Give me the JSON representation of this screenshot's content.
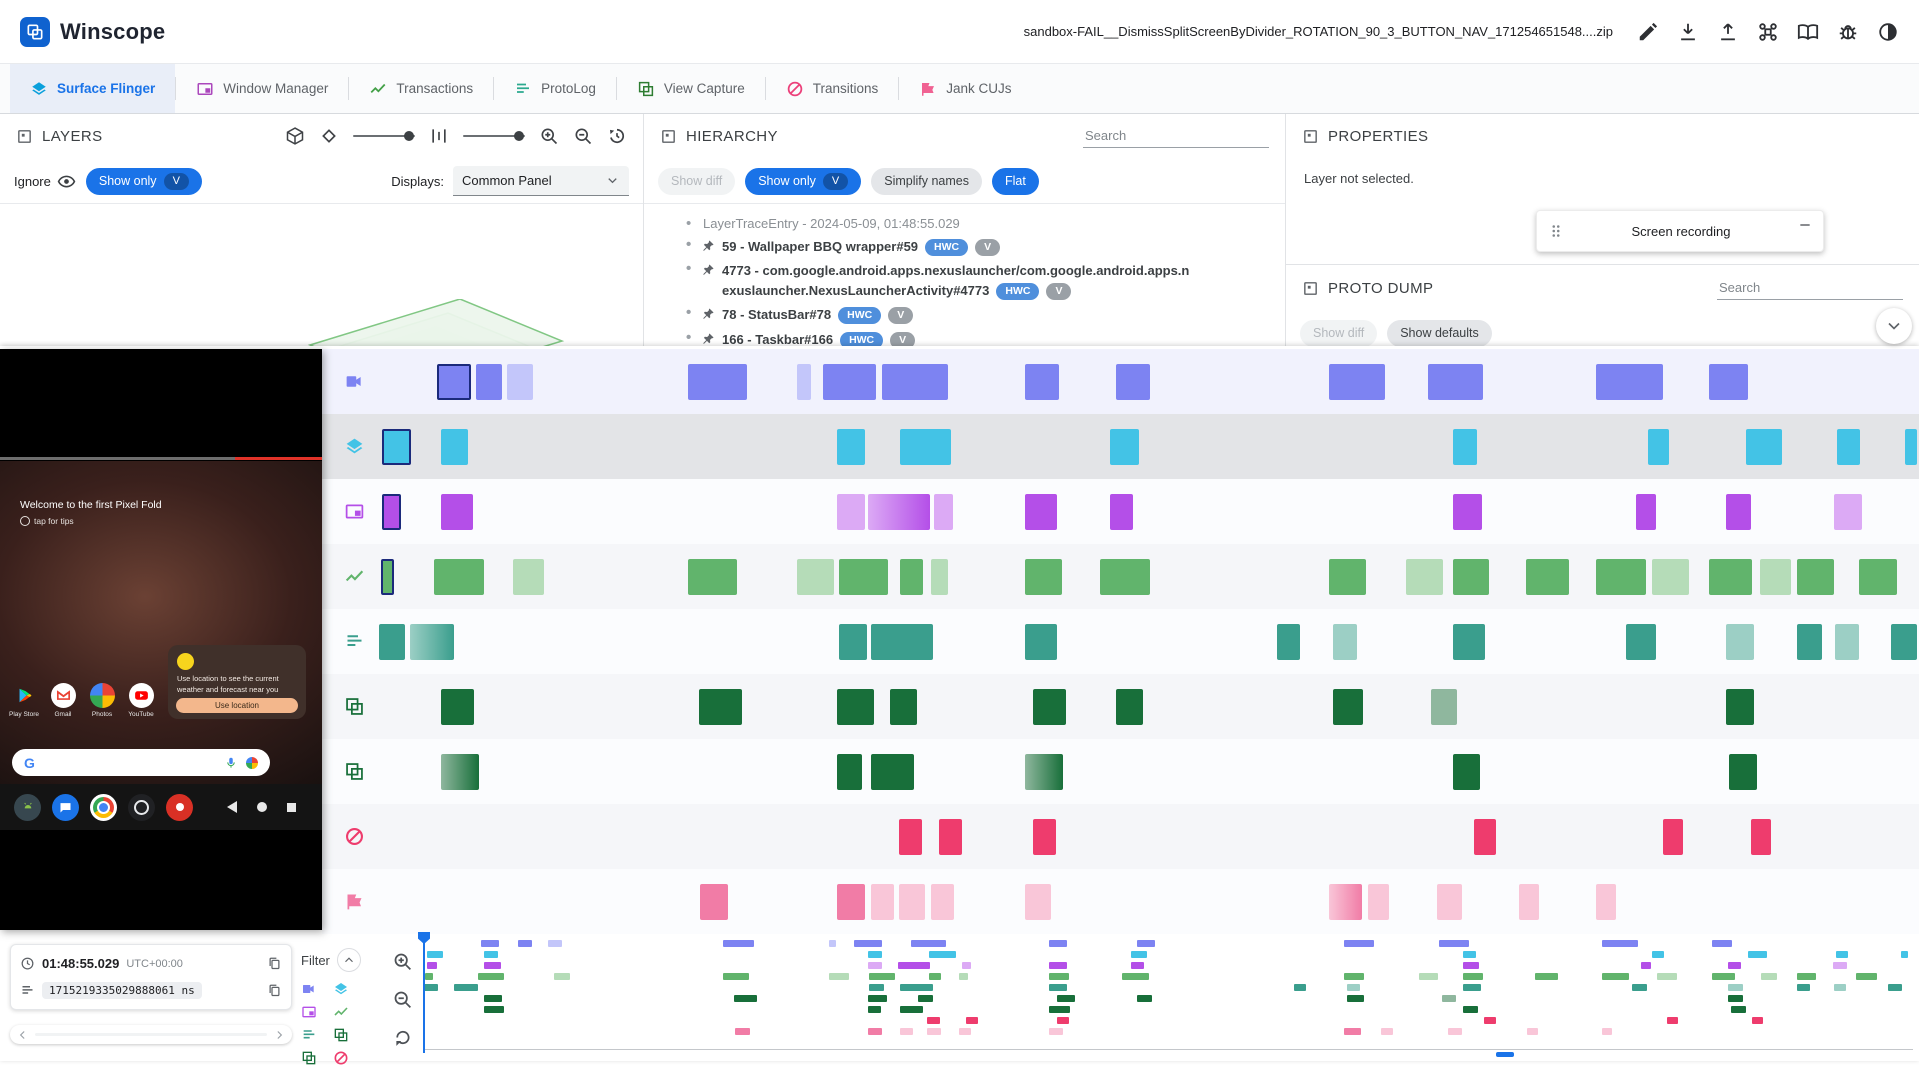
{
  "header": {
    "app_name_bold": "Win",
    "app_name_rest": "scope",
    "filename": "sandbox-FAIL__DismissSplitScreenByDivider_ROTATION_90_3_BUTTON_NAV_171254651548....zip",
    "accent_color": "#1a73e8"
  },
  "tabs": [
    {
      "label": "Surface Flinger",
      "icon": "layers",
      "color": "#0aa0dc",
      "active": true
    },
    {
      "label": "Window Manager",
      "icon": "window",
      "color": "#ab47bc",
      "active": false
    },
    {
      "label": "Transactions",
      "icon": "chart",
      "color": "#43a047",
      "active": false
    },
    {
      "label": "ProtoLog",
      "icon": "listlines",
      "color": "#2ba98e",
      "active": false
    },
    {
      "label": "View Capture",
      "icon": "squares",
      "color": "#2e7d32",
      "active": false
    },
    {
      "label": "Transitions",
      "icon": "blocked",
      "color": "#ec407a",
      "active": false
    },
    {
      "label": "Jank CUJs",
      "icon": "jank",
      "color": "#f06292",
      "active": false
    }
  ],
  "layers_panel": {
    "title": "LAYERS",
    "ignore": "Ignore",
    "show_only": "Show only",
    "v_chip": "V",
    "displays_label": "Displays:",
    "display_value": "Common Panel"
  },
  "hierarchy_panel": {
    "title": "HIERARCHY",
    "search_placeholder": "Search",
    "show_diff": "Show diff",
    "show_only": "Show only",
    "v_chip": "V",
    "simplify": "Simplify names",
    "flat": "Flat",
    "root": "LayerTraceEntry - 2024-05-09, 01:48:55.029",
    "items": [
      {
        "text": "59 - Wallpaper BBQ wrapper#59",
        "chips": [
          "HWC",
          "V"
        ]
      },
      {
        "text": "4773 - com.google.android.apps.nexuslauncher/com.google.android.apps.nexuslauncher.NexusLauncherActivity#4773",
        "chips": [
          "HWC",
          "V"
        ]
      },
      {
        "text": "78 - StatusBar#78",
        "chips": [
          "HWC",
          "V"
        ]
      },
      {
        "text": "166 - Taskbar#166",
        "chips": [
          "HWC",
          "V"
        ]
      }
    ]
  },
  "properties_panel": {
    "title": "PROPERTIES",
    "empty_message": "Layer not selected.",
    "floating_window_title": "Screen recording"
  },
  "proto_dump": {
    "title": "PROTO DUMP",
    "search_placeholder": "Search",
    "show_diff": "Show diff",
    "show_defaults": "Show defaults"
  },
  "timeline_controls": {
    "time": "01:48:55.029",
    "timezone": "UTC+00:00",
    "ns_value": "1715219335029888061 ns",
    "filter_label": "Filter"
  },
  "phone": {
    "welcome": "Welcome to the first Pixel Fold",
    "tips": "tap for tips",
    "toast_text": "Use location to see the current weather and forecast near you",
    "toast_button": "Use location",
    "app_labels": [
      "Play Store",
      "Gmail",
      "Photos",
      "YouTube"
    ]
  },
  "layers_3d": [
    {
      "fill": "rgba(236,245,236,0.95)",
      "stroke": "#81c784"
    },
    {
      "fill": "rgba(200,230,201,0.95)",
      "stroke": "#66bb6a"
    },
    {
      "fill": "rgba(165,214,167,0.95)",
      "stroke": "#43a047"
    },
    {
      "fill": "rgba(206,147,216,0.95)",
      "stroke": "#8e24aa"
    },
    {
      "fill": "rgba(186,104,200,0.95)",
      "stroke": "#6a1b9a"
    },
    {
      "fill": "rgba(165,214,167,0.95)",
      "stroke": "#43a047"
    },
    {
      "fill": "rgba(200,230,201,0.95)",
      "stroke": "#66bb6a"
    },
    {
      "fill": "rgba(174,213,176,0.95)",
      "stroke": "#388e3c"
    },
    {
      "fill": "rgba(197,225,198,0.95)",
      "stroke": "#4caf50"
    }
  ],
  "tracks": [
    {
      "name": "screen-recording",
      "icon": "videocam",
      "color": "#7d83f2",
      "light": "#c3c6fa",
      "row_bg": "#f1f2fd",
      "blocks": [
        {
          "x": 3.8,
          "w": 2.2,
          "v": "sel"
        },
        {
          "x": 6.3,
          "w": 1.7
        },
        {
          "x": 8.3,
          "w": 1.7,
          "v": "light"
        },
        {
          "x": 20.1,
          "w": 3.8
        },
        {
          "x": 27.2,
          "w": 0.9,
          "v": "light"
        },
        {
          "x": 28.9,
          "w": 3.4
        },
        {
          "x": 32.7,
          "w": 4.3
        },
        {
          "x": 42.0,
          "w": 2.2
        },
        {
          "x": 47.9,
          "w": 2.2
        },
        {
          "x": 61.8,
          "w": 3.6
        },
        {
          "x": 68.2,
          "w": 3.6
        },
        {
          "x": 79.1,
          "w": 4.4
        },
        {
          "x": 86.5,
          "w": 2.5
        }
      ]
    },
    {
      "name": "surface-flinger",
      "icon": "layers",
      "color": "#43c3e6",
      "light": "#a9e4f4",
      "row_bg": "#e3e4e7",
      "blocks": [
        {
          "x": 0.2,
          "w": 1.9,
          "v": "sel"
        },
        {
          "x": 4.0,
          "w": 1.8
        },
        {
          "x": 29.8,
          "w": 1.8
        },
        {
          "x": 33.9,
          "w": 3.3
        },
        {
          "x": 47.5,
          "w": 1.9
        },
        {
          "x": 69.8,
          "w": 1.6
        },
        {
          "x": 82.5,
          "w": 1.4
        },
        {
          "x": 88.9,
          "w": 2.3
        },
        {
          "x": 94.8,
          "w": 1.5
        },
        {
          "x": 99.2,
          "w": 0.8
        }
      ]
    },
    {
      "name": "window-manager",
      "icon": "window",
      "color": "#b44fe8",
      "light": "#dcaaf5",
      "blocks": [
        {
          "x": 0.2,
          "w": 1.2,
          "v": "sel"
        },
        {
          "x": 4.0,
          "w": 2.1
        },
        {
          "x": 29.8,
          "w": 1.8,
          "v": "light"
        },
        {
          "x": 31.8,
          "w": 4.0,
          "v": "grad"
        },
        {
          "x": 36.1,
          "w": 1.2,
          "v": "light"
        },
        {
          "x": 42.0,
          "w": 2.1
        },
        {
          "x": 47.5,
          "w": 1.5
        },
        {
          "x": 69.8,
          "w": 1.9
        },
        {
          "x": 81.7,
          "w": 1.3
        },
        {
          "x": 87.6,
          "w": 1.6
        },
        {
          "x": 94.6,
          "w": 1.8,
          "v": "light"
        }
      ]
    },
    {
      "name": "transactions",
      "icon": "chart",
      "color": "#61b46c",
      "light": "#b5dcb8",
      "blocks": [
        {
          "x": 0.1,
          "w": 0.9,
          "v": "sel"
        },
        {
          "x": 3.6,
          "w": 3.2
        },
        {
          "x": 8.7,
          "w": 2.0,
          "v": "light"
        },
        {
          "x": 20.1,
          "w": 3.2
        },
        {
          "x": 27.2,
          "w": 2.4,
          "v": "light"
        },
        {
          "x": 29.9,
          "w": 3.2
        },
        {
          "x": 33.9,
          "w": 1.5
        },
        {
          "x": 35.9,
          "w": 1.1,
          "v": "light"
        },
        {
          "x": 42.0,
          "w": 2.4
        },
        {
          "x": 46.9,
          "w": 3.2
        },
        {
          "x": 61.8,
          "w": 2.4
        },
        {
          "x": 66.8,
          "w": 2.4,
          "v": "light"
        },
        {
          "x": 69.8,
          "w": 2.4
        },
        {
          "x": 74.6,
          "w": 2.8
        },
        {
          "x": 79.1,
          "w": 3.3
        },
        {
          "x": 82.8,
          "w": 2.4,
          "v": "light"
        },
        {
          "x": 86.5,
          "w": 2.8
        },
        {
          "x": 89.8,
          "w": 2.0,
          "v": "light"
        },
        {
          "x": 92.2,
          "w": 2.4
        },
        {
          "x": 96.2,
          "w": 2.5
        }
      ]
    },
    {
      "name": "protolog",
      "icon": "listlines",
      "color": "#3a9e8d",
      "light": "#9ccfc5",
      "blocks": [
        {
          "x": 0.0,
          "w": 1.7
        },
        {
          "x": 2.0,
          "w": 2.9,
          "v": "grad"
        },
        {
          "x": 29.9,
          "w": 1.8
        },
        {
          "x": 32.0,
          "w": 4.0
        },
        {
          "x": 42.0,
          "w": 2.1
        },
        {
          "x": 58.4,
          "w": 1.5
        },
        {
          "x": 62.0,
          "w": 1.6,
          "v": "light"
        },
        {
          "x": 69.8,
          "w": 2.1
        },
        {
          "x": 81.1,
          "w": 1.9
        },
        {
          "x": 87.6,
          "w": 1.8,
          "v": "light"
        },
        {
          "x": 92.2,
          "w": 1.6
        },
        {
          "x": 94.7,
          "w": 1.5,
          "v": "light"
        },
        {
          "x": 98.3,
          "w": 1.7
        }
      ]
    },
    {
      "name": "view-capture",
      "icon": "squares",
      "color": "#186f3a",
      "light": "#8fb79e",
      "blocks": [
        {
          "x": 4.0,
          "w": 2.2
        },
        {
          "x": 20.8,
          "w": 2.8
        },
        {
          "x": 29.8,
          "w": 2.4
        },
        {
          "x": 33.2,
          "w": 1.8
        },
        {
          "x": 42.5,
          "w": 2.2
        },
        {
          "x": 47.9,
          "w": 1.8
        },
        {
          "x": 62.0,
          "w": 2.0
        },
        {
          "x": 68.4,
          "w": 1.7,
          "v": "light"
        },
        {
          "x": 87.6,
          "w": 1.8
        }
      ]
    },
    {
      "name": "view-capture-2",
      "icon": "squares",
      "color": "#186f3a",
      "light": "#8fb79e",
      "blocks": [
        {
          "x": 4.0,
          "w": 2.5,
          "v": "grad"
        },
        {
          "x": 29.8,
          "w": 1.6
        },
        {
          "x": 32.0,
          "w": 2.8
        },
        {
          "x": 42.0,
          "w": 2.5,
          "v": "grad"
        },
        {
          "x": 69.8,
          "w": 1.8
        },
        {
          "x": 87.8,
          "w": 1.8
        }
      ]
    },
    {
      "name": "transitions",
      "icon": "blocked",
      "color": "#ee3c6d",
      "light": "#f59ab5",
      "blocks": [
        {
          "x": 33.8,
          "w": 1.5
        },
        {
          "x": 36.4,
          "w": 1.5
        },
        {
          "x": 42.5,
          "w": 1.5
        },
        {
          "x": 71.2,
          "w": 1.4
        },
        {
          "x": 83.5,
          "w": 1.3
        },
        {
          "x": 89.2,
          "w": 1.3
        }
      ]
    },
    {
      "name": "jank-cujs",
      "icon": "jank",
      "color": "#f17ca6",
      "light": "#f9c6d8",
      "blocks": [
        {
          "x": 20.9,
          "w": 1.8
        },
        {
          "x": 29.8,
          "w": 1.8
        },
        {
          "x": 32.0,
          "w": 1.5,
          "v": "light"
        },
        {
          "x": 33.8,
          "w": 1.7,
          "v": "light"
        },
        {
          "x": 35.9,
          "w": 1.5,
          "v": "light"
        },
        {
          "x": 42.0,
          "w": 1.7,
          "v": "light"
        },
        {
          "x": 61.8,
          "w": 2.1,
          "v": "grad"
        },
        {
          "x": 64.3,
          "w": 1.4,
          "v": "light"
        },
        {
          "x": 68.8,
          "w": 1.6,
          "v": "light"
        },
        {
          "x": 74.1,
          "w": 1.3,
          "v": "light"
        },
        {
          "x": 79.1,
          "w": 1.3,
          "v": "light"
        }
      ]
    }
  ]
}
